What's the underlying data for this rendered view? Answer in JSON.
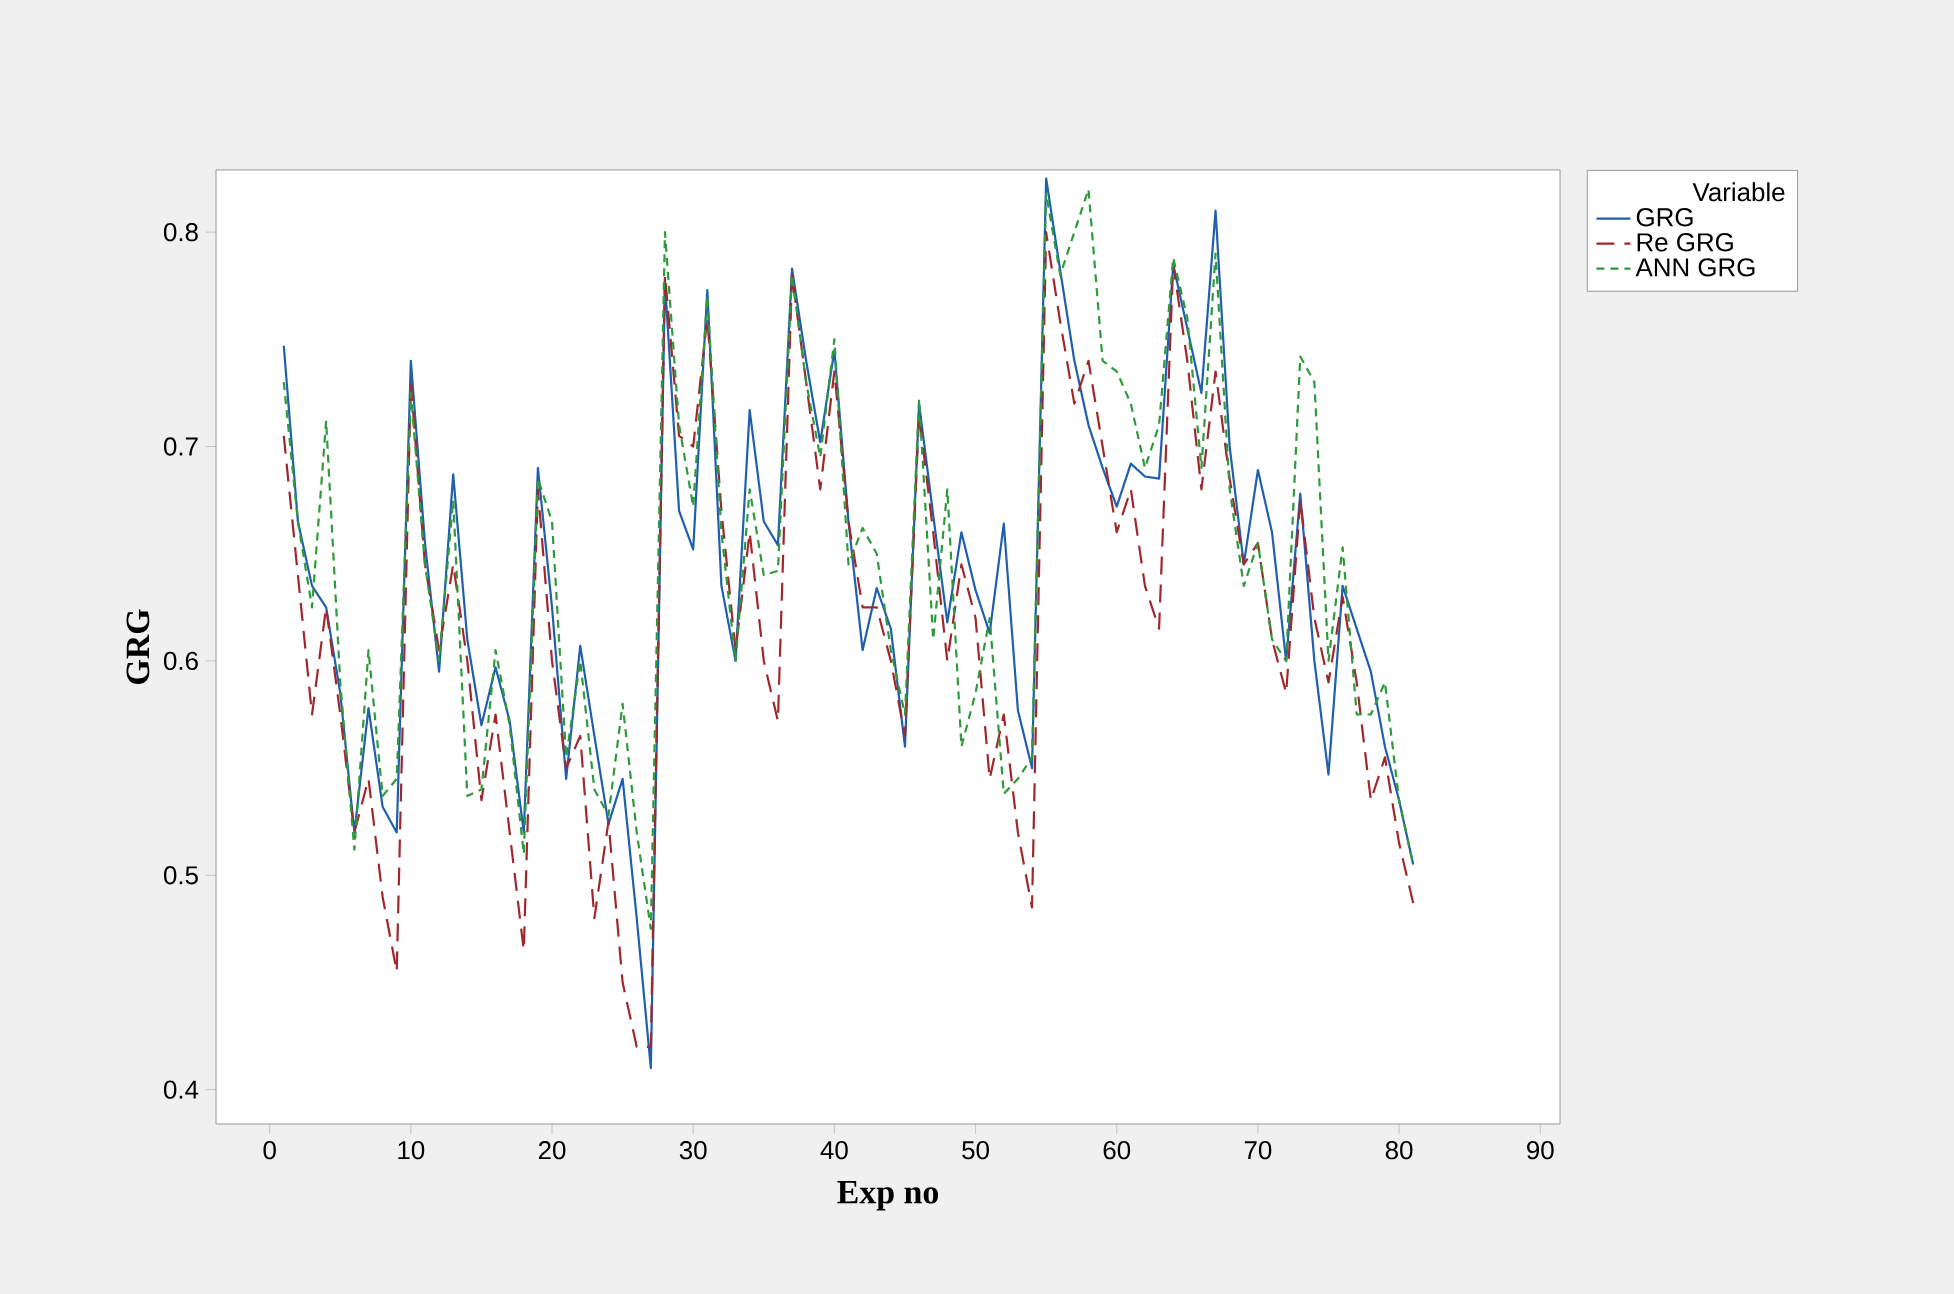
{
  "chart_data": {
    "type": "line",
    "xlabel": "Exp no",
    "ylabel": "GRG",
    "legend_title": "Variable",
    "legend": "top right",
    "x": [
      1,
      2,
      3,
      4,
      5,
      6,
      7,
      8,
      9,
      10,
      11,
      12,
      13,
      14,
      15,
      16,
      17,
      18,
      19,
      20,
      21,
      22,
      23,
      24,
      25,
      26,
      27,
      28,
      29,
      30,
      31,
      32,
      33,
      34,
      35,
      36,
      37,
      38,
      39,
      40,
      41,
      42,
      43,
      44,
      45,
      46,
      47,
      48,
      49,
      50,
      51,
      52,
      53,
      54,
      55,
      56,
      57,
      58,
      59,
      60,
      61,
      62,
      63,
      64,
      65,
      66,
      67,
      68,
      69,
      70,
      71,
      72,
      73,
      74,
      75,
      76,
      77,
      78,
      79,
      80,
      81
    ],
    "xlim": [
      -3.8,
      91.4
    ],
    "ylim": [
      0.384,
      0.829
    ],
    "xticks": [
      0,
      10,
      20,
      30,
      40,
      50,
      60,
      70,
      80,
      90
    ],
    "yticks": [
      0.4,
      0.5,
      0.6,
      0.7,
      0.8
    ],
    "marker": "none",
    "series": [
      {
        "name": "GRG",
        "color": "#1f5fad",
        "line_style": "solid",
        "values": [
          0.747,
          0.665,
          0.635,
          0.625,
          0.585,
          0.52,
          0.578,
          0.532,
          0.52,
          0.74,
          0.655,
          0.595,
          0.687,
          0.61,
          0.57,
          0.597,
          0.572,
          0.52,
          0.69,
          0.625,
          0.545,
          0.607,
          0.565,
          0.524,
          0.545,
          0.48,
          0.41,
          0.777,
          0.67,
          0.652,
          0.773,
          0.635,
          0.6,
          0.717,
          0.665,
          0.654,
          0.783,
          0.74,
          0.702,
          0.745,
          0.665,
          0.605,
          0.634,
          0.615,
          0.56,
          0.72,
          0.668,
          0.618,
          0.66,
          0.633,
          0.613,
          0.664,
          0.577,
          0.55,
          0.825,
          0.782,
          0.74,
          0.71,
          0.69,
          0.672,
          0.692,
          0.686,
          0.685,
          0.785,
          0.755,
          0.725,
          0.81,
          0.7,
          0.645,
          0.689,
          0.66,
          0.6,
          0.678,
          0.6,
          0.547,
          0.635,
          0.615,
          0.595,
          0.56,
          0.535,
          0.505
        ]
      },
      {
        "name": "Re GRG",
        "color": "#a0282d",
        "line_style": "dashed",
        "values": [
          0.705,
          0.64,
          0.575,
          0.625,
          0.575,
          0.52,
          0.545,
          0.49,
          0.455,
          0.73,
          0.645,
          0.605,
          0.645,
          0.6,
          0.535,
          0.575,
          0.52,
          0.465,
          0.68,
          0.6,
          0.55,
          0.565,
          0.48,
          0.525,
          0.45,
          0.42,
          0.42,
          0.78,
          0.705,
          0.7,
          0.76,
          0.67,
          0.605,
          0.66,
          0.6,
          0.572,
          0.78,
          0.73,
          0.68,
          0.735,
          0.665,
          0.625,
          0.625,
          0.6,
          0.565,
          0.715,
          0.66,
          0.6,
          0.645,
          0.62,
          0.545,
          0.575,
          0.52,
          0.485,
          0.8,
          0.758,
          0.72,
          0.74,
          0.7,
          0.66,
          0.68,
          0.635,
          0.615,
          0.785,
          0.74,
          0.68,
          0.735,
          0.685,
          0.645,
          0.655,
          0.61,
          0.585,
          0.675,
          0.62,
          0.59,
          0.63,
          0.59,
          0.535,
          0.555,
          0.515,
          0.487
        ]
      },
      {
        "name": "ANN GRG",
        "color": "#2e9a3c",
        "line_style": "dashed",
        "values": [
          0.73,
          0.665,
          0.625,
          0.712,
          0.59,
          0.512,
          0.605,
          0.537,
          0.545,
          0.725,
          0.645,
          0.6,
          0.675,
          0.537,
          0.54,
          0.605,
          0.57,
          0.51,
          0.685,
          0.665,
          0.555,
          0.6,
          0.54,
          0.528,
          0.58,
          0.52,
          0.475,
          0.8,
          0.71,
          0.672,
          0.77,
          0.66,
          0.6,
          0.68,
          0.64,
          0.642,
          0.78,
          0.73,
          0.695,
          0.75,
          0.645,
          0.662,
          0.65,
          0.605,
          0.575,
          0.722,
          0.61,
          0.68,
          0.56,
          0.585,
          0.62,
          0.538,
          0.545,
          0.555,
          0.818,
          0.78,
          0.8,
          0.82,
          0.74,
          0.735,
          0.72,
          0.69,
          0.71,
          0.788,
          0.76,
          0.69,
          0.79,
          0.68,
          0.635,
          0.655,
          0.61,
          0.6,
          0.742,
          0.73,
          0.6,
          0.653,
          0.575,
          0.575,
          0.59,
          0.535,
          0.505
        ]
      }
    ]
  }
}
